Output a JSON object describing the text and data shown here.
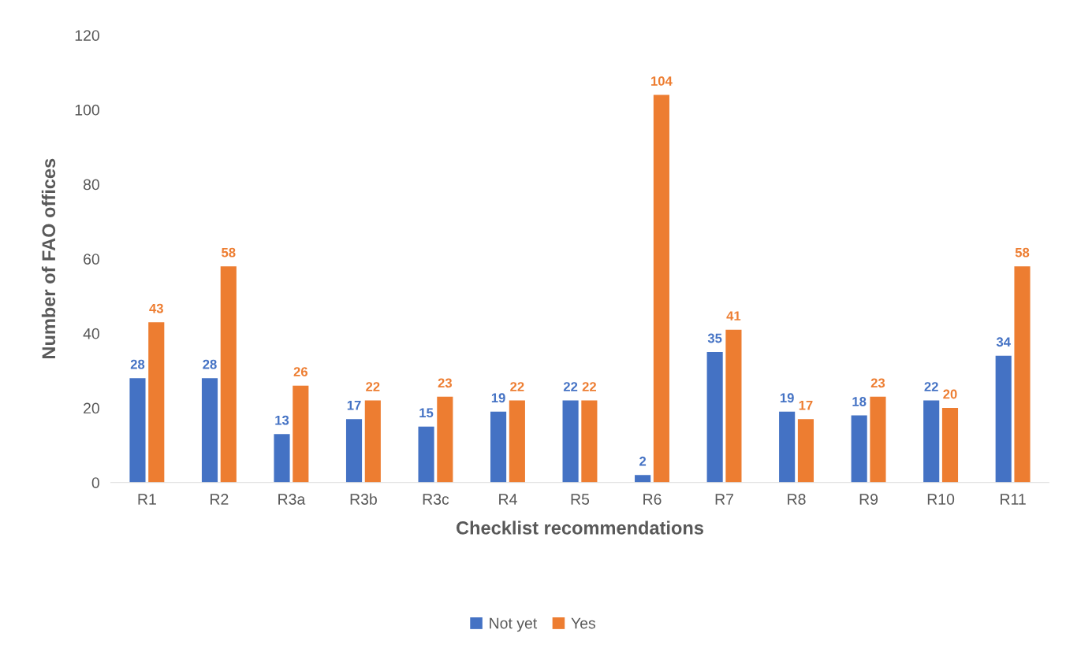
{
  "chart_data": {
    "type": "bar",
    "xlabel": "Checklist recommendations",
    "ylabel": "Number of FAO offices",
    "categories": [
      "R1",
      "R2",
      "R3a",
      "R3b",
      "R3c",
      "R4",
      "R5",
      "R6",
      "R7",
      "R8",
      "R9",
      "R10",
      "R11"
    ],
    "series": [
      {
        "name": "Not yet",
        "color": "#4472c4",
        "values": [
          28,
          28,
          13,
          17,
          15,
          19,
          22,
          2,
          35,
          19,
          18,
          22,
          34
        ]
      },
      {
        "name": "Yes",
        "color": "#ed7d31",
        "values": [
          43,
          58,
          26,
          22,
          23,
          22,
          22,
          104,
          41,
          17,
          23,
          20,
          58
        ]
      }
    ],
    "ylim": [
      0,
      120
    ],
    "yticks": [
      0,
      20,
      40,
      60,
      80,
      100,
      120
    ],
    "grid": false,
    "legend": "bottom",
    "data_labels": true
  }
}
